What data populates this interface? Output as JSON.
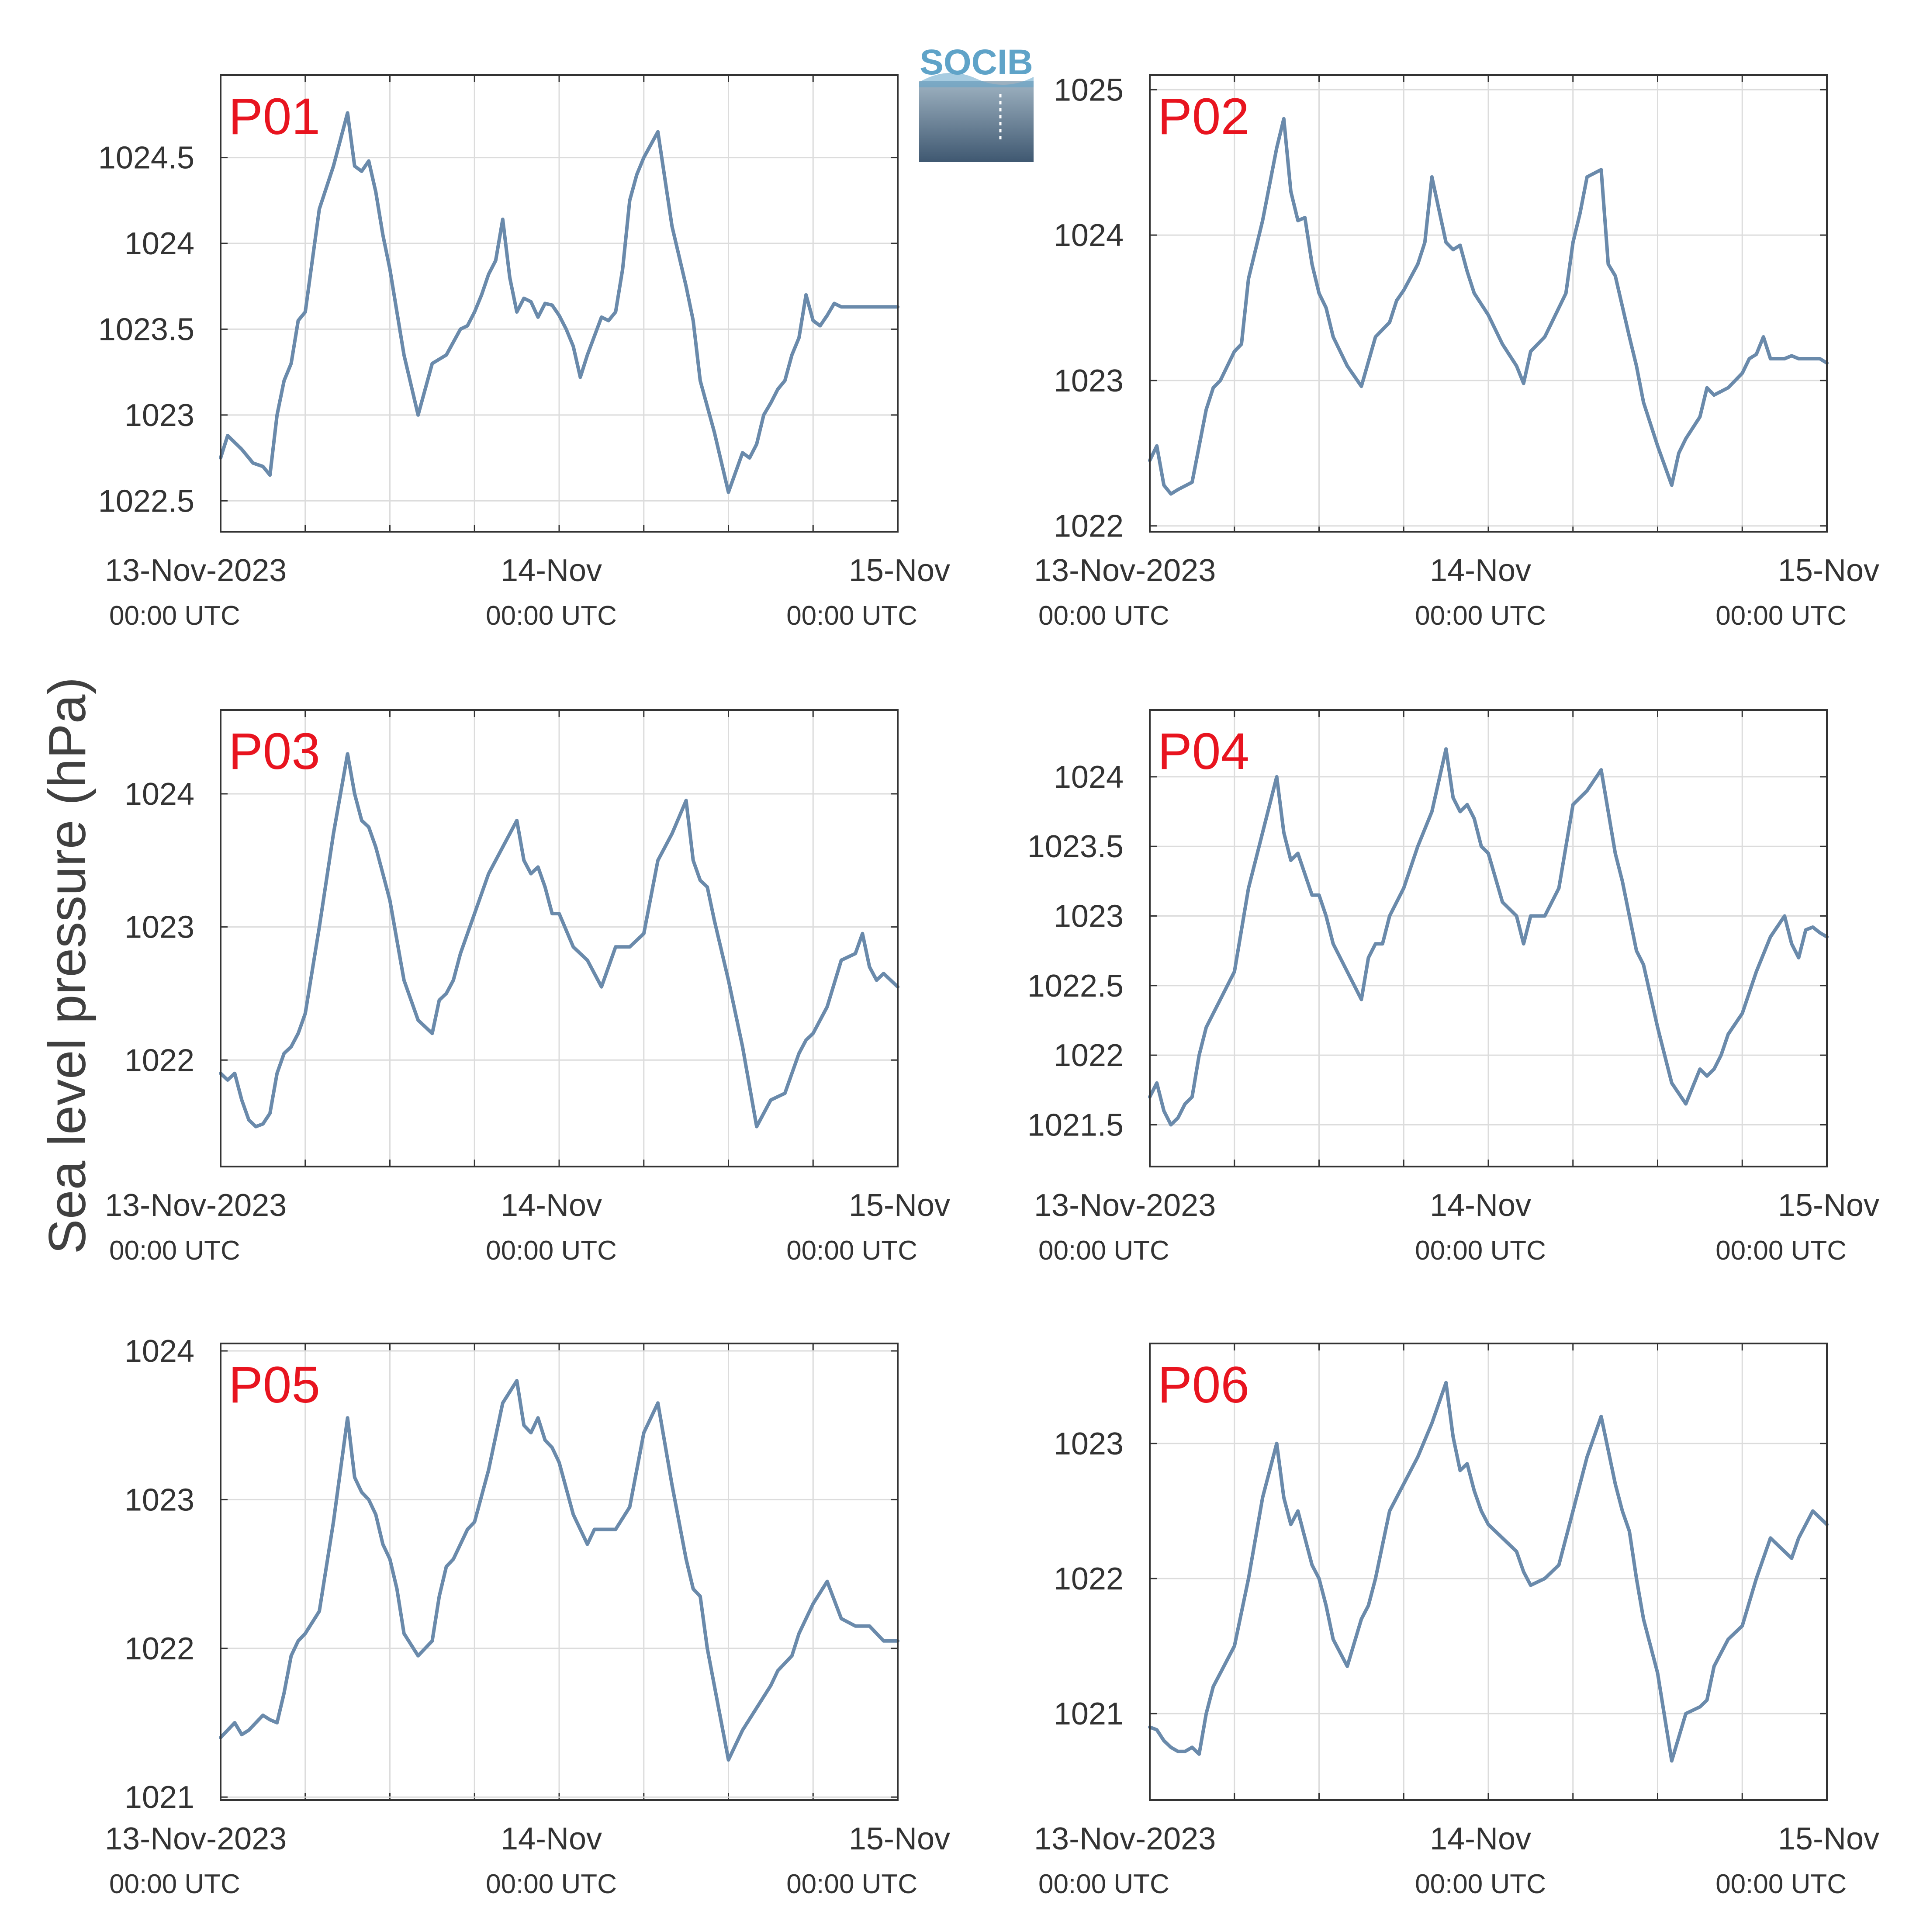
{
  "figure": {
    "ylabel": "Sea level pressure (hPa)",
    "logo_text": "SOCIB"
  },
  "colors": {
    "series": "#6a8aab",
    "panel_label": "#e8141f",
    "grid": "#dcdcdc",
    "axis": "#333333",
    "logo_text": "#5fa3c8",
    "logo_top": "#9fb3c2",
    "logo_bottom": "#3f5871"
  },
  "chart_data": [
    {
      "type": "line",
      "label": "P01",
      "xlim": [
        0,
        48
      ],
      "ylim": [
        1022.32,
        1024.98
      ],
      "yticks": [
        1022.5,
        1023,
        1023.5,
        1024,
        1024.5
      ],
      "ytick_labels": [
        "1022.5",
        "1023",
        "1023.5",
        "1024",
        "1024.5"
      ],
      "xticks": [
        0,
        24,
        48
      ],
      "xtick_labels": [
        "13-Nov-2023",
        "14-Nov",
        "15-Nov"
      ],
      "xtick_sublabels": [
        "00:00 UTC",
        "00:00 UTC",
        "00:00 UTC"
      ],
      "grid": true,
      "x": [
        0,
        0.5,
        1.5,
        2.3,
        3,
        3.5,
        4,
        4.5,
        5,
        5.5,
        6,
        7,
        8,
        9,
        9.5,
        10,
        10.5,
        11,
        11.5,
        12,
        12.5,
        13,
        14,
        15,
        16,
        17,
        17.5,
        18,
        18.5,
        19,
        19.5,
        20,
        20.5,
        21,
        21.5,
        22,
        22.5,
        23,
        23.5,
        24,
        24.5,
        25,
        25.5,
        26,
        27,
        27.5,
        28,
        28.5,
        29,
        29.5,
        30,
        31,
        32,
        33,
        33.5,
        34,
        35,
        36,
        37,
        37.5,
        38,
        38.5,
        39,
        39.5,
        40,
        40.5,
        41,
        41.5,
        42,
        42.5,
        43,
        43.5,
        44,
        44.5,
        45,
        45.5,
        46,
        46.5,
        47,
        47.5,
        48
      ],
      "y": [
        1022.75,
        1022.88,
        1022.8,
        1022.72,
        1022.7,
        1022.65,
        1023.0,
        1023.2,
        1023.3,
        1023.55,
        1023.6,
        1024.2,
        1024.45,
        1024.76,
        1024.45,
        1024.42,
        1024.48,
        1024.3,
        1024.05,
        1023.85,
        1023.6,
        1023.35,
        1023.0,
        1023.3,
        1023.35,
        1023.5,
        1023.52,
        1023.6,
        1023.7,
        1023.82,
        1023.9,
        1024.14,
        1023.8,
        1023.6,
        1023.68,
        1023.66,
        1023.57,
        1023.65,
        1023.64,
        1023.58,
        1023.5,
        1023.4,
        1023.22,
        1023.35,
        1023.57,
        1023.55,
        1023.6,
        1023.85,
        1024.25,
        1024.4,
        1024.5,
        1024.65,
        1024.1,
        1023.75,
        1023.55,
        1023.2,
        1022.9,
        1022.55,
        1022.78,
        1022.75,
        1022.83,
        1023.0,
        1023.07,
        1023.15,
        1023.2,
        1023.35,
        1023.45,
        1023.7,
        1023.55,
        1023.52,
        1023.58,
        1023.65,
        1023.63,
        1023.63,
        1023.63,
        1023.63,
        1023.63,
        1023.63,
        1023.63,
        1023.63,
        1023.63
      ]
    },
    {
      "type": "line",
      "label": "P02",
      "xlim": [
        0,
        48
      ],
      "ylim": [
        1021.96,
        1025.1
      ],
      "yticks": [
        1022,
        1023,
        1024,
        1025
      ],
      "ytick_labels": [
        "1022",
        "1023",
        "1024",
        "1025"
      ],
      "xticks": [
        0,
        24,
        48
      ],
      "xtick_labels": [
        "13-Nov-2023",
        "14-Nov",
        "15-Nov"
      ],
      "xtick_sublabels": [
        "00:00 UTC",
        "00:00 UTC",
        "00:00 UTC"
      ],
      "grid": true,
      "x": [
        0,
        0.5,
        1,
        1.5,
        2,
        3,
        4,
        4.5,
        5,
        6,
        6.5,
        7,
        8,
        9,
        9.5,
        10,
        10.5,
        11,
        11.5,
        12,
        12.5,
        13,
        14,
        15,
        16,
        16.5,
        17,
        17.5,
        18,
        19,
        19.5,
        20,
        21,
        21.5,
        22,
        22.5,
        23,
        24,
        25,
        26,
        26.5,
        27,
        28,
        29,
        29.5,
        30,
        30.5,
        31,
        32,
        32.5,
        33,
        34,
        34.5,
        35,
        36,
        37,
        37.5,
        38,
        39,
        39.5,
        40,
        41,
        42,
        42.5,
        43,
        43.5,
        44,
        45,
        45.5,
        46,
        46.5,
        47,
        47.5,
        48
      ],
      "y": [
        1022.45,
        1022.55,
        1022.28,
        1022.22,
        1022.25,
        1022.3,
        1022.8,
        1022.95,
        1023.0,
        1023.2,
        1023.25,
        1023.7,
        1024.1,
        1024.6,
        1024.8,
        1024.3,
        1024.1,
        1024.12,
        1023.8,
        1023.6,
        1023.5,
        1023.3,
        1023.1,
        1022.96,
        1023.3,
        1023.35,
        1023.4,
        1023.55,
        1023.62,
        1023.8,
        1023.95,
        1024.4,
        1023.95,
        1023.9,
        1023.93,
        1023.75,
        1023.6,
        1023.45,
        1023.25,
        1023.1,
        1022.98,
        1023.2,
        1023.3,
        1023.5,
        1023.6,
        1023.95,
        1024.15,
        1024.4,
        1024.45,
        1023.8,
        1023.72,
        1023.3,
        1023.1,
        1022.85,
        1022.55,
        1022.28,
        1022.5,
        1022.6,
        1022.75,
        1022.95,
        1022.9,
        1022.95,
        1023.05,
        1023.15,
        1023.18,
        1023.3,
        1023.15,
        1023.15,
        1023.17,
        1023.15,
        1023.15,
        1023.15,
        1023.15,
        1023.12
      ]
    },
    {
      "type": "line",
      "label": "P03",
      "xlim": [
        0,
        48
      ],
      "ylim": [
        1021.2,
        1024.63
      ],
      "yticks": [
        1022,
        1023,
        1024
      ],
      "ytick_labels": [
        "1022",
        "1023",
        "1024"
      ],
      "xticks": [
        0,
        24,
        48
      ],
      "xtick_labels": [
        "13-Nov-2023",
        "14-Nov",
        "15-Nov"
      ],
      "xtick_sublabels": [
        "00:00 UTC",
        "00:00 UTC",
        "00:00 UTC"
      ],
      "grid": true,
      "x": [
        0,
        0.5,
        1,
        1.5,
        2,
        2.5,
        3,
        3.5,
        4,
        4.5,
        5,
        5.5,
        6,
        7,
        8,
        9,
        9.5,
        10,
        10.5,
        11,
        11.5,
        12,
        12.5,
        13,
        14,
        15,
        15.5,
        16,
        16.5,
        17,
        17.5,
        18,
        19,
        20,
        21,
        21.5,
        22,
        22.5,
        23,
        23.5,
        24,
        25,
        26,
        27,
        28,
        28.5,
        29,
        30,
        31,
        32,
        33,
        33.5,
        34,
        34.5,
        35,
        36,
        37,
        38,
        39,
        40,
        40.5,
        41,
        41.5,
        42,
        43,
        44,
        45,
        45.5,
        46,
        46.5,
        47,
        47.5,
        48
      ],
      "y": [
        1021.9,
        1021.85,
        1021.9,
        1021.7,
        1021.55,
        1021.5,
        1021.52,
        1021.6,
        1021.9,
        1022.05,
        1022.1,
        1022.2,
        1022.35,
        1023.0,
        1023.7,
        1024.3,
        1024.0,
        1023.8,
        1023.75,
        1023.6,
        1023.4,
        1023.2,
        1022.9,
        1022.6,
        1022.3,
        1022.2,
        1022.45,
        1022.5,
        1022.6,
        1022.8,
        1022.95,
        1023.1,
        1023.4,
        1023.6,
        1023.8,
        1023.5,
        1023.4,
        1023.45,
        1023.3,
        1023.1,
        1023.1,
        1022.85,
        1022.75,
        1022.55,
        1022.85,
        1022.85,
        1022.85,
        1022.95,
        1023.5,
        1023.7,
        1023.95,
        1023.5,
        1023.35,
        1023.3,
        1023.05,
        1022.6,
        1022.1,
        1021.5,
        1021.7,
        1021.75,
        1021.9,
        1022.05,
        1022.15,
        1022.2,
        1022.4,
        1022.75,
        1022.8,
        1022.95,
        1022.7,
        1022.6,
        1022.65,
        1022.6,
        1022.55
      ]
    },
    {
      "type": "line",
      "label": "P04",
      "xlim": [
        0,
        48
      ],
      "ylim": [
        1021.2,
        1024.48
      ],
      "yticks": [
        1021.5,
        1022,
        1022.5,
        1023,
        1023.5,
        1024
      ],
      "ytick_labels": [
        "1021.5",
        "1022",
        "1022.5",
        "1023",
        "1023.5",
        "1024"
      ],
      "xticks": [
        0,
        24,
        48
      ],
      "xtick_labels": [
        "13-Nov-2023",
        "14-Nov",
        "15-Nov"
      ],
      "xtick_sublabels": [
        "00:00 UTC",
        "00:00 UTC",
        "00:00 UTC"
      ],
      "grid": true,
      "x": [
        0,
        0.5,
        1,
        1.5,
        2,
        2.5,
        3,
        3.5,
        4,
        4.5,
        5,
        5.5,
        6,
        7,
        8,
        9,
        9.5,
        10,
        10.5,
        11,
        11.5,
        12,
        12.5,
        13,
        14,
        15,
        15.5,
        16,
        16.5,
        17,
        17.5,
        18,
        19,
        20,
        21,
        21.5,
        22,
        22.5,
        23,
        23.5,
        24,
        25,
        26,
        26.5,
        27,
        28,
        29,
        30,
        31,
        32,
        33,
        33.5,
        34,
        34.5,
        35,
        36,
        37,
        38,
        39,
        39.5,
        40,
        40.5,
        41,
        42,
        43,
        44,
        45,
        45.5,
        46,
        46.5,
        47,
        47.5,
        48
      ],
      "y": [
        1021.7,
        1021.8,
        1021.6,
        1021.5,
        1021.55,
        1021.65,
        1021.7,
        1022.0,
        1022.2,
        1022.3,
        1022.4,
        1022.5,
        1022.6,
        1023.2,
        1023.6,
        1024.0,
        1023.6,
        1023.4,
        1023.45,
        1023.3,
        1023.15,
        1023.15,
        1023.0,
        1022.8,
        1022.6,
        1022.4,
        1022.7,
        1022.8,
        1022.8,
        1023.0,
        1023.1,
        1023.2,
        1023.5,
        1023.75,
        1024.2,
        1023.85,
        1023.75,
        1023.8,
        1023.7,
        1023.5,
        1023.45,
        1023.1,
        1023.0,
        1022.8,
        1023.0,
        1023.0,
        1023.2,
        1023.8,
        1023.9,
        1024.05,
        1023.45,
        1023.25,
        1023.0,
        1022.75,
        1022.65,
        1022.2,
        1021.8,
        1021.65,
        1021.9,
        1021.85,
        1021.9,
        1022.0,
        1022.15,
        1022.3,
        1022.6,
        1022.85,
        1023.0,
        1022.8,
        1022.7,
        1022.9,
        1022.92,
        1022.88,
        1022.85
      ]
    },
    {
      "type": "line",
      "label": "P05",
      "xlim": [
        0,
        48
      ],
      "ylim": [
        1020.98,
        1024.05
      ],
      "yticks": [
        1021,
        1022,
        1023,
        1024
      ],
      "ytick_labels": [
        "1021",
        "1022",
        "1023",
        "1024"
      ],
      "xticks": [
        0,
        24,
        48
      ],
      "xtick_labels": [
        "13-Nov-2023",
        "14-Nov",
        "15-Nov"
      ],
      "xtick_sublabels": [
        "00:00 UTC",
        "00:00 UTC",
        "00:00 UTC"
      ],
      "grid": true,
      "x": [
        0,
        0.5,
        1,
        1.5,
        2,
        2.5,
        3,
        3.5,
        4,
        4.5,
        5,
        5.5,
        6,
        7,
        8,
        9,
        9.5,
        10,
        10.5,
        11,
        11.5,
        12,
        12.5,
        13,
        14,
        15,
        15.5,
        16,
        16.5,
        17,
        17.5,
        18,
        19,
        20,
        21,
        21.5,
        22,
        22.5,
        23,
        23.5,
        24,
        25,
        26,
        26.5,
        27,
        28,
        29,
        30,
        31,
        32,
        33,
        33.5,
        34,
        34.5,
        35,
        36,
        37,
        38,
        39,
        39.5,
        40,
        40.5,
        41,
        42,
        43,
        44,
        45,
        45.5,
        46,
        46.5,
        47,
        47.5,
        48
      ],
      "y": [
        1021.4,
        1021.45,
        1021.5,
        1021.42,
        1021.45,
        1021.5,
        1021.55,
        1021.52,
        1021.5,
        1021.7,
        1021.95,
        1022.05,
        1022.1,
        1022.25,
        1022.85,
        1023.55,
        1023.15,
        1023.05,
        1023.0,
        1022.9,
        1022.7,
        1022.6,
        1022.4,
        1022.1,
        1021.95,
        1022.05,
        1022.35,
        1022.55,
        1022.6,
        1022.7,
        1022.8,
        1022.85,
        1023.2,
        1023.65,
        1023.8,
        1023.5,
        1023.45,
        1023.55,
        1023.4,
        1023.35,
        1023.25,
        1022.9,
        1022.7,
        1022.8,
        1022.8,
        1022.8,
        1022.95,
        1023.45,
        1023.65,
        1023.1,
        1022.6,
        1022.4,
        1022.35,
        1022.0,
        1021.75,
        1021.25,
        1021.45,
        1021.6,
        1021.75,
        1021.85,
        1021.9,
        1021.95,
        1022.1,
        1022.3,
        1022.45,
        1022.2,
        1022.15,
        1022.15,
        1022.15,
        1022.1,
        1022.05,
        1022.05,
        1022.05
      ]
    },
    {
      "type": "line",
      "label": "P06",
      "xlim": [
        0,
        48
      ],
      "ylim": [
        1020.36,
        1023.74
      ],
      "yticks": [
        1021,
        1022,
        1023
      ],
      "ytick_labels": [
        "1021",
        "1022",
        "1023"
      ],
      "xticks": [
        0,
        24,
        48
      ],
      "xtick_labels": [
        "13-Nov-2023",
        "14-Nov",
        "15-Nov"
      ],
      "xtick_sublabels": [
        "00:00 UTC",
        "00:00 UTC",
        "00:00 UTC"
      ],
      "grid": true,
      "x": [
        0,
        0.5,
        1,
        1.5,
        2,
        2.5,
        3,
        3.5,
        4,
        4.5,
        5,
        5.5,
        6,
        7,
        8,
        9,
        9.5,
        10,
        10.5,
        11,
        11.5,
        12,
        12.5,
        13,
        14,
        15,
        15.5,
        16,
        16.5,
        17,
        17.5,
        18,
        19,
        20,
        21,
        21.5,
        22,
        22.5,
        23,
        23.5,
        24,
        25,
        26,
        26.5,
        27,
        28,
        29,
        30,
        31,
        32,
        33,
        33.5,
        34,
        34.5,
        35,
        36,
        37,
        38,
        39,
        39.5,
        40,
        40.5,
        41,
        42,
        43,
        44,
        45,
        45.5,
        46,
        46.5,
        47,
        47.5,
        48
      ],
      "y": [
        1020.9,
        1020.88,
        1020.8,
        1020.75,
        1020.72,
        1020.72,
        1020.75,
        1020.7,
        1021.0,
        1021.2,
        1021.3,
        1021.4,
        1021.5,
        1022.0,
        1022.6,
        1023.0,
        1022.6,
        1022.4,
        1022.5,
        1022.3,
        1022.1,
        1022.0,
        1021.8,
        1021.55,
        1021.35,
        1021.7,
        1021.8,
        1022.0,
        1022.25,
        1022.5,
        1022.6,
        1022.7,
        1022.9,
        1023.15,
        1023.45,
        1023.05,
        1022.8,
        1022.85,
        1022.65,
        1022.5,
        1022.4,
        1022.3,
        1022.2,
        1022.05,
        1021.95,
        1022.0,
        1022.1,
        1022.5,
        1022.9,
        1023.2,
        1022.7,
        1022.5,
        1022.35,
        1022.0,
        1021.7,
        1021.3,
        1020.65,
        1021.0,
        1021.05,
        1021.1,
        1021.35,
        1021.45,
        1021.55,
        1021.65,
        1022.0,
        1022.3,
        1022.2,
        1022.15,
        1022.3,
        1022.4,
        1022.5,
        1022.45,
        1022.4
      ]
    }
  ]
}
